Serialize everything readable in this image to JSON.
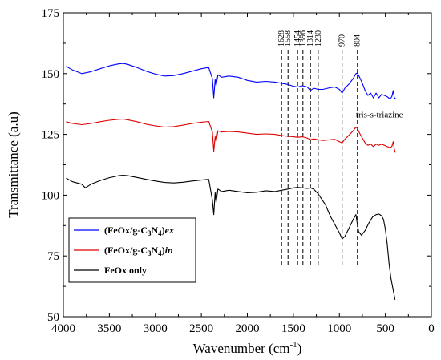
{
  "chart_data": {
    "type": "line",
    "title": "",
    "xlabel": "Wavenumber (cm",
    "xlabel_sup": "-1",
    "xlabel_close": ")",
    "ylabel": "Transmittance (a.u)",
    "xlim": [
      4000,
      0
    ],
    "ylim": [
      50,
      175
    ],
    "x_ticks": [
      4000,
      3500,
      3000,
      2500,
      2000,
      1500,
      1000,
      500,
      0
    ],
    "y_ticks": [
      50,
      75,
      100,
      125,
      150,
      175
    ],
    "grid": false,
    "legend_position": "bottom-left",
    "peak_lines": [
      {
        "label": "1628",
        "x": 1628
      },
      {
        "label": "1558",
        "x": 1558
      },
      {
        "label": "1454",
        "x": 1454
      },
      {
        "label": "1396",
        "x": 1396
      },
      {
        "label": "1314",
        "x": 1314
      },
      {
        "label": "1230",
        "x": 1230
      },
      {
        "label": "970",
        "x": 970
      },
      {
        "label": "804",
        "x": 804
      }
    ],
    "annotation": {
      "text": "tris-s-triazine",
      "x": 820,
      "y": 132
    },
    "series": [
      {
        "name": "(FeOx/g-C3N4)ex",
        "legend": {
          "pre": "(FeOx/g-C",
          "sub1": "3",
          "mid": "N",
          "sub2": "4",
          "post": ")",
          "em": "ex"
        },
        "color": "#0000ff",
        "x": [
          3970,
          3900,
          3800,
          3700,
          3600,
          3500,
          3400,
          3350,
          3300,
          3200,
          3100,
          3000,
          2900,
          2800,
          2700,
          2600,
          2500,
          2420,
          2380,
          2365,
          2350,
          2340,
          2320,
          2280,
          2200,
          2100,
          2000,
          1900,
          1800,
          1700,
          1628,
          1558,
          1500,
          1454,
          1400,
          1350,
          1314,
          1280,
          1230,
          1180,
          1100,
          1050,
          1000,
          970,
          940,
          900,
          850,
          820,
          804,
          780,
          750,
          720,
          690,
          660,
          630,
          600,
          570,
          540,
          510,
          480,
          450,
          430,
          415,
          400,
          390
        ],
        "y": [
          153,
          151.5,
          150,
          150.8,
          152,
          153.2,
          154,
          154.2,
          153.8,
          152.5,
          151,
          149.8,
          149,
          149.2,
          150,
          151,
          152,
          152.5,
          148,
          140,
          147.5,
          145,
          149.5,
          148.5,
          149,
          148.5,
          147.2,
          146.5,
          146.8,
          146.5,
          146,
          145.5,
          144.8,
          144.5,
          145,
          144.5,
          143,
          144,
          143.5,
          143.5,
          144.2,
          144.5,
          143.5,
          142,
          144,
          145.5,
          148,
          150,
          150.2,
          148.5,
          146,
          143,
          141,
          142,
          140,
          142,
          140,
          141.5,
          141,
          140.5,
          139.5,
          140.5,
          143,
          139.5,
          140
        ]
      },
      {
        "name": "(FeOx/g-C3N4)in",
        "legend": {
          "pre": "(FeOx/g-C",
          "sub1": "3",
          "mid": "N",
          "sub2": "4",
          "post": ")",
          "em": "in"
        },
        "color": "#dd0000",
        "x": [
          3970,
          3900,
          3800,
          3700,
          3600,
          3500,
          3400,
          3350,
          3300,
          3200,
          3100,
          3000,
          2900,
          2800,
          2700,
          2600,
          2500,
          2420,
          2380,
          2365,
          2350,
          2340,
          2320,
          2280,
          2200,
          2100,
          2000,
          1900,
          1800,
          1700,
          1628,
          1558,
          1500,
          1454,
          1400,
          1350,
          1314,
          1280,
          1230,
          1180,
          1100,
          1050,
          1000,
          970,
          940,
          900,
          850,
          820,
          804,
          780,
          750,
          720,
          690,
          660,
          630,
          600,
          570,
          540,
          510,
          480,
          450,
          430,
          415,
          400,
          390
        ],
        "y": [
          130.2,
          129.5,
          129,
          129.5,
          130.2,
          130.8,
          131.2,
          131.3,
          131,
          130.2,
          129.2,
          128.5,
          128,
          128.2,
          128.8,
          129.5,
          130,
          130.3,
          126,
          118,
          124,
          122,
          126.5,
          126,
          126.2,
          126,
          125.5,
          125,
          125.2,
          125,
          124.5,
          124.2,
          124,
          123.8,
          124,
          123.5,
          122.8,
          123.2,
          122.8,
          122.5,
          122.8,
          123,
          122,
          121.5,
          123,
          124.5,
          126.5,
          128,
          127.5,
          125.5,
          123.5,
          121.5,
          120.5,
          121,
          120,
          121,
          120.5,
          121,
          120.5,
          120,
          119.5,
          120,
          122,
          118.5,
          117.5
        ]
      },
      {
        "name": "FeOx only",
        "legend": {
          "pre": "FeOx only",
          "sub1": "",
          "mid": "",
          "sub2": "",
          "post": "",
          "em": ""
        },
        "color": "#000000",
        "x": [
          3970,
          3900,
          3800,
          3760,
          3700,
          3600,
          3500,
          3400,
          3350,
          3300,
          3200,
          3100,
          3000,
          2900,
          2800,
          2700,
          2600,
          2500,
          2420,
          2380,
          2365,
          2350,
          2340,
          2320,
          2280,
          2200,
          2100,
          2000,
          1900,
          1800,
          1700,
          1628,
          1558,
          1500,
          1454,
          1400,
          1350,
          1314,
          1280,
          1230,
          1150,
          1100,
          1050,
          1000,
          970,
          940,
          900,
          850,
          820,
          804,
          790,
          760,
          720,
          680,
          640,
          600,
          570,
          540,
          520,
          500,
          480,
          460,
          440,
          420,
          410,
          400,
          395
        ],
        "y": [
          107,
          105.5,
          104.5,
          103,
          104.5,
          106,
          107.2,
          108,
          108.2,
          108,
          107.3,
          106.5,
          105.8,
          105.2,
          105,
          105.3,
          105.8,
          106.2,
          106.5,
          98,
          92,
          101,
          97,
          102.5,
          101.5,
          102,
          101.5,
          101,
          101.2,
          101.8,
          101.5,
          102,
          102.5,
          103,
          103.2,
          103,
          102.8,
          103,
          102.5,
          100.5,
          96,
          91.5,
          88,
          84.5,
          82,
          83,
          86,
          90,
          92,
          88,
          85,
          83.5,
          85.5,
          88.5,
          91,
          92,
          92.2,
          91.5,
          90,
          86,
          80,
          72,
          66,
          62,
          60,
          58,
          57
        ]
      }
    ]
  }
}
